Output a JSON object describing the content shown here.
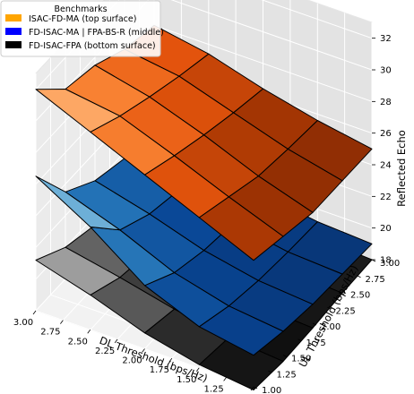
{
  "chart_data": {
    "type": "surface3d",
    "title": "",
    "xlabel": "DL Threshold (bps/Hz)",
    "ylabel": "UL Threshold (bps/Hz)",
    "zlabel": "Reflected Echo",
    "x_ticks": [
      "3.00",
      "2.75",
      "2.50",
      "2.25",
      "2.00",
      "1.75",
      "1.50",
      "1.25",
      "1.00"
    ],
    "y_ticks": [
      "1.00",
      "1.25",
      "1.50",
      "1.75",
      "2.00",
      "2.25",
      "2.50",
      "2.75",
      "3.00"
    ],
    "z_ticks": [
      "18",
      "20",
      "22",
      "24",
      "26",
      "28",
      "30",
      "32"
    ],
    "xlim": [
      1.0,
      3.0
    ],
    "ylim": [
      1.0,
      3.0
    ],
    "zlim": [
      18,
      33
    ],
    "grid": true,
    "legend": {
      "title": "Benchmarks",
      "placement": "top-left",
      "entries": [
        {
          "label": "ISAC-FD-MA (top surface)",
          "color": "#ffa500"
        },
        {
          "label": "FD-ISAC-MA | FPA-BS-R (middle)",
          "color": "#0000ff"
        },
        {
          "label": "FD-ISAC-FPA (bottom surface)",
          "color": "#000000"
        }
      ]
    },
    "x": [
      1.0,
      1.5,
      2.0,
      2.5,
      3.0
    ],
    "y": [
      1.0,
      1.5,
      2.0,
      2.5,
      3.0
    ],
    "series": [
      {
        "name": "ISAC-FD-MA (top surface)",
        "colormap": "Oranges",
        "z": [
          [
            26.0,
            27.5,
            29.0,
            30.5,
            32.0
          ],
          [
            25.5,
            26.8,
            28.2,
            29.5,
            30.0
          ],
          [
            25.0,
            26.1,
            27.5,
            28.7,
            29.5
          ],
          [
            25.0,
            25.8,
            26.9,
            28.0,
            28.5
          ],
          [
            25.0,
            25.6,
            26.4,
            27.4,
            28.0
          ]
        ]
      },
      {
        "name": "FD-ISAC-MA | FPA-BS-R (middle)",
        "colormap": "Blues",
        "z": [
          [
            20.0,
            20.6,
            22.0,
            24.5,
            26.5
          ],
          [
            19.5,
            19.9,
            20.8,
            22.3,
            23.5
          ],
          [
            19.2,
            19.5,
            20.2,
            21.3,
            22.2
          ],
          [
            19.1,
            19.3,
            19.9,
            20.8,
            21.6
          ],
          [
            19.0,
            19.2,
            19.7,
            20.5,
            21.2
          ]
        ]
      },
      {
        "name": "FD-ISAC-FPA (bottom surface)",
        "colormap": "Greys",
        "z": [
          [
            17.8,
            18.2,
            19.0,
            20.2,
            21.2
          ],
          [
            17.6,
            17.9,
            18.5,
            19.3,
            20.0
          ],
          [
            17.7,
            17.9,
            18.3,
            18.9,
            19.4
          ],
          [
            17.9,
            18.1,
            18.4,
            18.8,
            19.2
          ],
          [
            18.0,
            18.2,
            18.5,
            18.9,
            19.1
          ]
        ]
      }
    ]
  }
}
